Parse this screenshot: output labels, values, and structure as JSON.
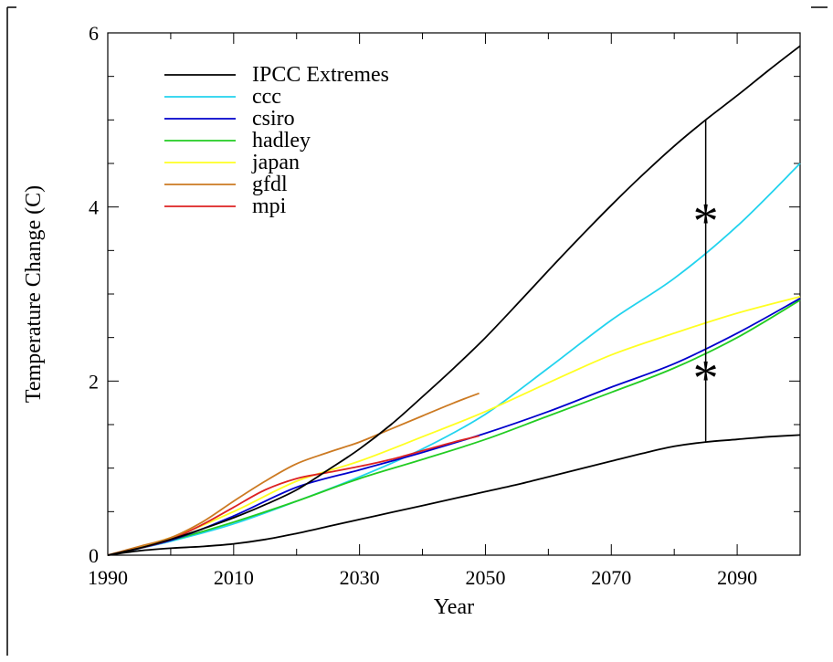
{
  "chart_data": {
    "type": "line",
    "xlabel": "Year",
    "ylabel": "Temperature Change (C)",
    "xlim": [
      1990,
      2100
    ],
    "ylim": [
      0,
      6
    ],
    "xticks": [
      1990,
      2010,
      2030,
      2050,
      2070,
      2090
    ],
    "yticks": [
      0,
      2,
      4,
      6
    ],
    "legend_position": "top-left",
    "grid": false,
    "series": [
      {
        "name": "IPCC Extremes",
        "color": "#000000",
        "x": [
          1990,
          1995,
          2000,
          2005,
          2010,
          2015,
          2020,
          2025,
          2030,
          2035,
          2040,
          2045,
          2050,
          2055,
          2060,
          2065,
          2070,
          2075,
          2080,
          2085,
          2090,
          2095,
          2100
        ],
        "y": [
          0.0,
          0.08,
          0.18,
          0.3,
          0.43,
          0.58,
          0.75,
          0.98,
          1.22,
          1.5,
          1.82,
          2.15,
          2.5,
          2.88,
          3.27,
          3.65,
          4.02,
          4.37,
          4.7,
          5.0,
          5.28,
          5.57,
          5.85
        ]
      },
      {
        "name": "IPCC Extremes lower",
        "color": "#000000",
        "x": [
          1990,
          1995,
          2000,
          2005,
          2010,
          2015,
          2020,
          2025,
          2030,
          2035,
          2040,
          2045,
          2050,
          2055,
          2060,
          2065,
          2070,
          2075,
          2080,
          2085,
          2090,
          2095,
          2100
        ],
        "y": [
          0.0,
          0.05,
          0.08,
          0.1,
          0.13,
          0.18,
          0.25,
          0.33,
          0.41,
          0.49,
          0.57,
          0.65,
          0.73,
          0.81,
          0.9,
          0.99,
          1.08,
          1.17,
          1.25,
          1.3,
          1.33,
          1.36,
          1.38
        ]
      },
      {
        "name": "ccc",
        "color": "#22d3ee",
        "x": [
          1990,
          2000,
          2010,
          2020,
          2030,
          2040,
          2050,
          2060,
          2070,
          2080,
          2090,
          2100
        ],
        "y": [
          0.0,
          0.16,
          0.36,
          0.62,
          0.9,
          1.22,
          1.62,
          2.15,
          2.7,
          3.18,
          3.78,
          4.5
        ]
      },
      {
        "name": "csiro",
        "color": "#0000cc",
        "x": [
          1990,
          2000,
          2010,
          2020,
          2030,
          2040,
          2050,
          2060,
          2070,
          2080,
          2090,
          2100
        ],
        "y": [
          0.0,
          0.17,
          0.45,
          0.78,
          0.98,
          1.18,
          1.4,
          1.65,
          1.93,
          2.2,
          2.55,
          2.95
        ]
      },
      {
        "name": "hadley",
        "color": "#22cc22",
        "x": [
          1990,
          2000,
          2010,
          2020,
          2030,
          2040,
          2050,
          2060,
          2070,
          2080,
          2090,
          2100
        ],
        "y": [
          0.0,
          0.17,
          0.38,
          0.62,
          0.88,
          1.1,
          1.33,
          1.6,
          1.87,
          2.15,
          2.5,
          2.93
        ]
      },
      {
        "name": "japan",
        "color": "#ffff22",
        "x": [
          1990,
          2000,
          2010,
          2020,
          2030,
          2040,
          2050,
          2060,
          2070,
          2080,
          2090,
          2100
        ],
        "y": [
          0.0,
          0.2,
          0.5,
          0.85,
          1.08,
          1.36,
          1.65,
          1.98,
          2.3,
          2.55,
          2.78,
          2.97
        ]
      },
      {
        "name": "gfdl",
        "color": "#cc7a22",
        "x": [
          1990,
          1995,
          2000,
          2005,
          2010,
          2015,
          2020,
          2025,
          2030,
          2035,
          2040,
          2045,
          2049
        ],
        "y": [
          0.0,
          0.1,
          0.2,
          0.38,
          0.62,
          0.85,
          1.05,
          1.18,
          1.3,
          1.45,
          1.6,
          1.75,
          1.86
        ]
      },
      {
        "name": "mpi",
        "color": "#dd2222",
        "x": [
          1990,
          1995,
          2000,
          2005,
          2010,
          2015,
          2020,
          2025,
          2030,
          2035,
          2040,
          2045,
          2049
        ],
        "y": [
          0.0,
          0.08,
          0.18,
          0.35,
          0.55,
          0.75,
          0.88,
          0.95,
          1.02,
          1.1,
          1.2,
          1.3,
          1.37
        ]
      }
    ],
    "legend": [
      {
        "label": "IPCC Extremes",
        "color": "#000000"
      },
      {
        "label": "ccc",
        "color": "#22d3ee"
      },
      {
        "label": "csiro",
        "color": "#0000cc"
      },
      {
        "label": "hadley",
        "color": "#22cc22"
      },
      {
        "label": "japan",
        "color": "#ffff22"
      },
      {
        "label": "gfdl",
        "color": "#cc7a22"
      },
      {
        "label": "mpi",
        "color": "#dd2222"
      }
    ],
    "annotations": {
      "range_bar": {
        "x": 2085,
        "y_low": 1.3,
        "y_high": 5.0
      },
      "markers": [
        {
          "text": "*",
          "x": 2085,
          "y": 4.0
        },
        {
          "text": "*",
          "x": 2085,
          "y": 2.2
        }
      ]
    }
  }
}
